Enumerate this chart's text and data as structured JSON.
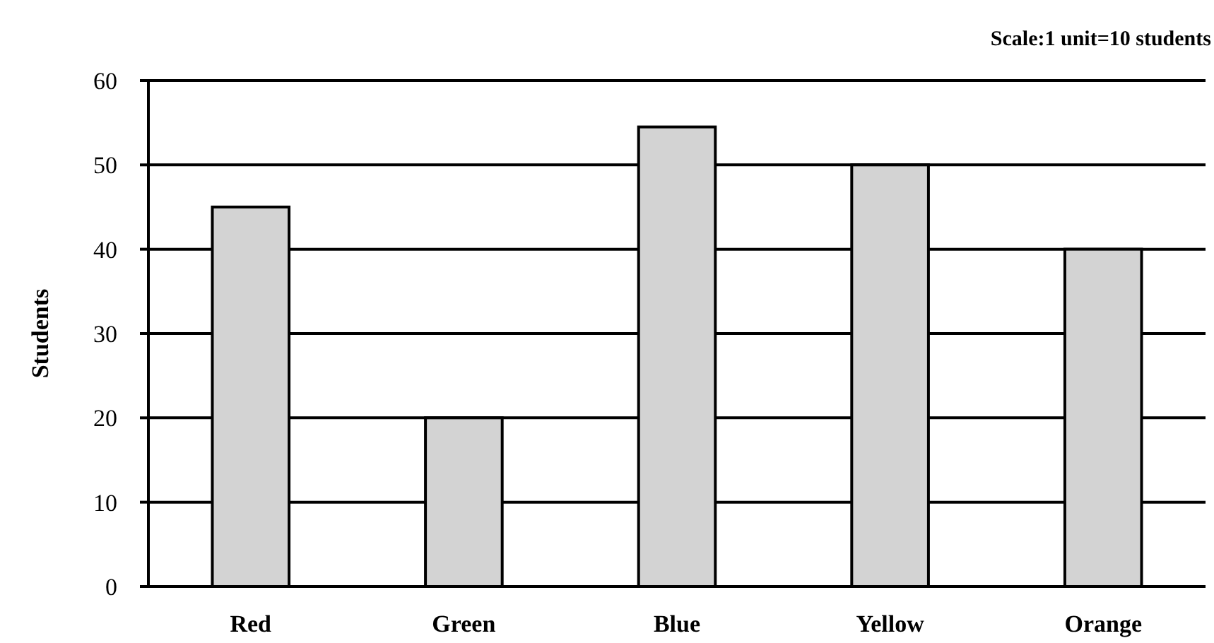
{
  "chart_data": {
    "type": "bar",
    "ylabel": "Students",
    "annotations": [
      "Scale:1 unit=10 students"
    ],
    "categories": [
      "Red",
      "Green",
      "Blue",
      "Yellow",
      "Orange"
    ],
    "values": [
      45,
      20,
      54.5,
      50,
      40
    ],
    "color": "#d3d3d3",
    "ylim": [
      0,
      60
    ],
    "yticks": [
      0,
      10,
      20,
      30,
      40,
      50,
      60
    ],
    "grid": "y"
  }
}
